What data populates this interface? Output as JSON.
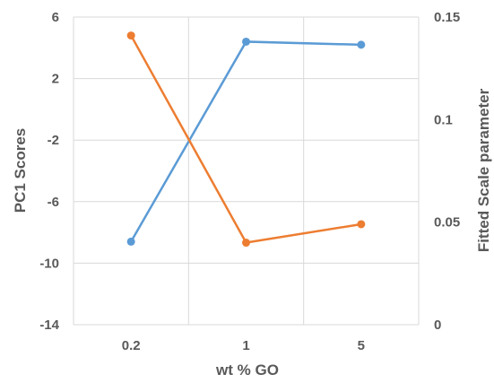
{
  "chart_data": {
    "type": "line",
    "categories": [
      "0.2",
      "1",
      "5"
    ],
    "xlabel": "wt %  GO",
    "ylabel_left": "PC1 Scores",
    "ylabel_right": "Fitted Scale parameter",
    "y_left": {
      "lim": [
        -14,
        6
      ],
      "ticks": [
        "6",
        "2",
        "-2",
        "-6",
        "-10",
        "-14"
      ],
      "tick_values": [
        6,
        2,
        -2,
        -6,
        -10,
        -14
      ]
    },
    "y_right": {
      "lim": [
        0,
        0.15
      ],
      "ticks": [
        "0.15",
        "0.1",
        "0.05",
        "0"
      ],
      "tick_values": [
        0.15,
        0.1,
        0.05,
        0
      ]
    },
    "grid": true,
    "series": [
      {
        "axis": "left",
        "color": "#5b9bd5",
        "values": [
          -8.6,
          4.4,
          4.2
        ]
      },
      {
        "axis": "right",
        "color": "#ed7d31",
        "values": [
          0.141,
          0.04,
          0.049
        ]
      }
    ]
  }
}
